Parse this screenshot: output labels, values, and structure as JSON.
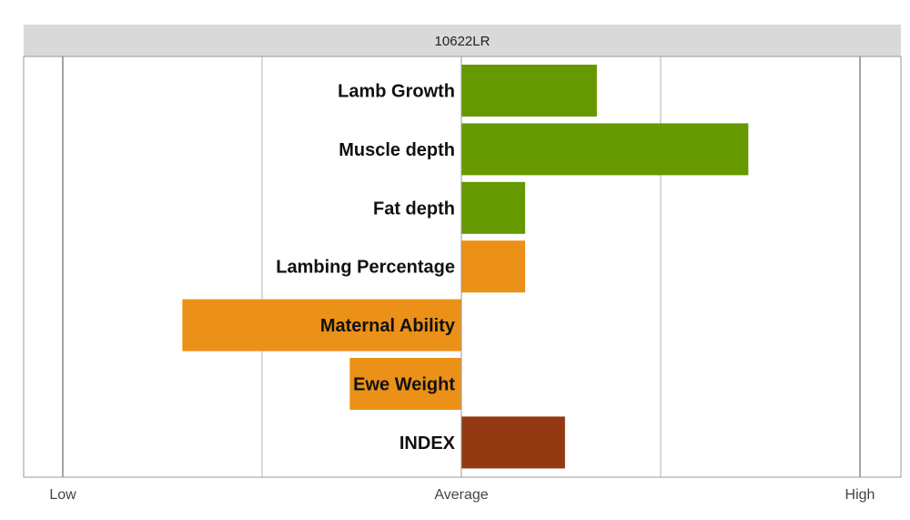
{
  "chart_data": {
    "type": "bar",
    "orientation": "horizontal",
    "title": "10622LR",
    "xlabel": "",
    "ylabel": "",
    "xlim": [
      -1,
      1
    ],
    "grid": true,
    "categories": [
      "Lamb Growth",
      "Muscle depth",
      "Fat depth",
      "Lambing Percentage",
      "Maternal Ability",
      "Ewe Weight",
      "INDEX"
    ],
    "values": [
      0.34,
      0.72,
      0.16,
      0.16,
      -0.7,
      -0.28,
      0.26
    ],
    "bar_colors": [
      "#669900",
      "#669900",
      "#669900",
      "#eb9117",
      "#eb9117",
      "#eb9117",
      "#943a12"
    ],
    "x_ticks": [
      {
        "value": -1,
        "label": "Low"
      },
      {
        "value": 0,
        "label": "Average"
      },
      {
        "value": 1,
        "label": "High"
      }
    ],
    "gridlines": [
      -1,
      -0.5,
      0,
      0.5,
      1
    ],
    "colors": {
      "title_bg": "#d9d9d9",
      "grid": "#b3b3b3",
      "frame": "#999999"
    }
  }
}
